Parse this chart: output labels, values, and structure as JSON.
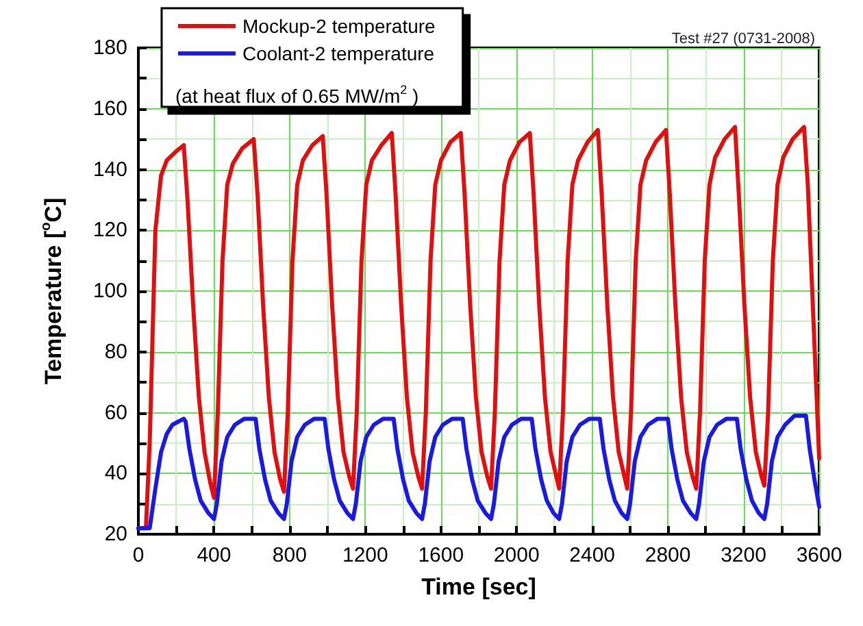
{
  "chart_data": {
    "type": "line",
    "title": "Test #27 (0731-2008)",
    "xlabel": "Time [sec]",
    "ylabel": "Temperature [$^{o}$C]",
    "annotations": [
      "(at heat flux of 0.65 MW/m$^{2}$ )"
    ],
    "xlim": [
      0,
      3600
    ],
    "xticks": [
      0,
      {
        "value": 200,
        "label": null
      },
      400,
      {
        "value": 600,
        "label": null
      },
      800,
      {
        "value": 1000,
        "label": null
      },
      1200,
      {
        "value": 1400,
        "label": null
      },
      1600,
      {
        "value": 1800,
        "label": null
      },
      2000,
      {
        "value": 2200,
        "label": null
      },
      2400,
      {
        "value": 2600,
        "label": null
      },
      2800,
      {
        "value": 3000,
        "label": null
      },
      3200,
      {
        "value": 3400,
        "label": null
      },
      3600
    ],
    "ylim": [
      20,
      180
    ],
    "yticks": [
      20,
      {
        "value": 30,
        "label": null
      },
      40,
      {
        "value": 50,
        "label": null
      },
      60,
      {
        "value": 70,
        "label": null
      },
      80,
      {
        "value": 90,
        "label": null
      },
      100,
      {
        "value": 110,
        "label": null
      },
      120,
      {
        "value": 130,
        "label": null
      },
      140,
      {
        "value": 150,
        "label": null
      },
      160,
      {
        "value": 170,
        "label": null
      },
      180
    ],
    "grid": true,
    "legend": "top left",
    "marker": "none",
    "line_style": "solid",
    "series": [
      {
        "name": "Mockup-2 temperature",
        "color": "#e01010",
        "x": [
          0,
          40,
          60,
          90,
          120,
          150,
          200,
          240,
          260,
          290,
          320,
          350,
          380,
          400,
          420,
          445,
          470,
          500,
          550,
          610,
          630,
          660,
          690,
          720,
          750,
          770,
          790,
          815,
          840,
          870,
          920,
          975,
          995,
          1025,
          1055,
          1085,
          1115,
          1135,
          1155,
          1180,
          1205,
          1235,
          1285,
          1340,
          1360,
          1390,
          1420,
          1450,
          1480,
          1500,
          1520,
          1545,
          1570,
          1600,
          1650,
          1705,
          1725,
          1755,
          1785,
          1815,
          1845,
          1865,
          1885,
          1910,
          1935,
          1965,
          2015,
          2070,
          2090,
          2120,
          2150,
          2180,
          2210,
          2225,
          2245,
          2270,
          2295,
          2325,
          2375,
          2430,
          2450,
          2480,
          2510,
          2540,
          2570,
          2585,
          2605,
          2630,
          2655,
          2685,
          2735,
          2790,
          2810,
          2840,
          2870,
          2900,
          2930,
          2950,
          2970,
          2995,
          3020,
          3050,
          3100,
          3155,
          3175,
          3205,
          3235,
          3265,
          3295,
          3310,
          3330,
          3355,
          3380,
          3410,
          3460,
          3520,
          3540,
          3570,
          3600
        ],
        "values": [
          22,
          22,
          50,
          120,
          138,
          143,
          146,
          148,
          130,
          95,
          65,
          47,
          37,
          32,
          60,
          110,
          135,
          142,
          147,
          150,
          132,
          95,
          65,
          47,
          38,
          34,
          60,
          110,
          135,
          143,
          148,
          151,
          132,
          95,
          65,
          47,
          39,
          35,
          60,
          110,
          135,
          143,
          148,
          152,
          132,
          95,
          65,
          47,
          39,
          35,
          60,
          110,
          135,
          143,
          149,
          152,
          132,
          95,
          65,
          47,
          39,
          35,
          60,
          110,
          135,
          143,
          149,
          152,
          132,
          95,
          65,
          47,
          39,
          35,
          60,
          110,
          135,
          143,
          149,
          153,
          132,
          95,
          65,
          47,
          39,
          35,
          60,
          110,
          135,
          143,
          149,
          153,
          132,
          95,
          65,
          47,
          39,
          35,
          60,
          110,
          135,
          144,
          150,
          154,
          132,
          95,
          65,
          47,
          39,
          36,
          60,
          110,
          135,
          144,
          150,
          154,
          135,
          90,
          45
        ]
      },
      {
        "name": "Coolant-2 temperature",
        "color": "#1a1ae0",
        "x": [
          0,
          60,
          90,
          120,
          150,
          180,
          240,
          250,
          270,
          300,
          330,
          370,
          400,
          415,
          440,
          470,
          510,
          560,
          620,
          640,
          670,
          700,
          740,
          770,
          785,
          810,
          840,
          880,
          930,
          985,
          1005,
          1035,
          1065,
          1105,
          1135,
          1150,
          1175,
          1205,
          1245,
          1295,
          1350,
          1370,
          1400,
          1430,
          1470,
          1500,
          1515,
          1540,
          1570,
          1610,
          1660,
          1715,
          1735,
          1765,
          1795,
          1835,
          1865,
          1880,
          1905,
          1935,
          1975,
          2025,
          2080,
          2100,
          2130,
          2160,
          2195,
          2225,
          2240,
          2265,
          2295,
          2335,
          2385,
          2440,
          2460,
          2490,
          2520,
          2555,
          2585,
          2600,
          2625,
          2655,
          2695,
          2745,
          2800,
          2820,
          2850,
          2880,
          2920,
          2950,
          2965,
          2990,
          3020,
          3060,
          3110,
          3165,
          3185,
          3215,
          3245,
          3280,
          3310,
          3325,
          3350,
          3380,
          3420,
          3470,
          3530,
          3550,
          3575,
          3600
        ],
        "values": [
          22,
          22,
          35,
          47,
          53,
          56,
          58,
          57,
          48,
          38,
          31,
          27,
          25,
          30,
          44,
          52,
          56,
          58,
          58,
          48,
          38,
          31,
          27,
          25,
          30,
          44,
          52,
          56,
          58,
          58,
          48,
          38,
          31,
          27,
          25,
          30,
          44,
          52,
          56,
          58,
          58,
          48,
          38,
          31,
          27,
          25,
          30,
          44,
          52,
          56,
          58,
          58,
          48,
          38,
          31,
          27,
          25,
          30,
          44,
          52,
          56,
          58,
          58,
          48,
          38,
          31,
          27,
          25,
          30,
          44,
          52,
          56,
          58,
          58,
          48,
          38,
          31,
          27,
          25,
          30,
          44,
          52,
          56,
          58,
          58,
          48,
          38,
          31,
          27,
          25,
          30,
          44,
          52,
          56,
          58,
          58,
          48,
          38,
          31,
          27,
          25,
          30,
          44,
          52,
          56,
          59,
          59,
          48,
          38,
          29
        ]
      }
    ]
  }
}
